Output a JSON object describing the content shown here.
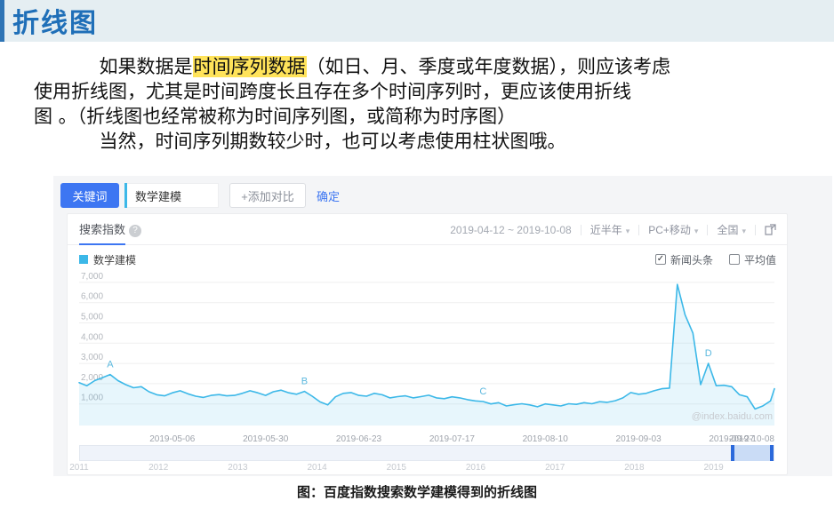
{
  "slide": {
    "title": "折线图",
    "body": {
      "line1_pre": "如果数据是",
      "line1_hl": "时间序列数据",
      "line1_post": "（如日、月、季度或年度数据），则应该考虑",
      "line2": "使用折线图，尤其是时间跨度长且存在多个时间序列时，更应该使用折线",
      "line3": "图 。（折线图也经常被称为时间序列图，或简称为时序图）",
      "line4": "当然，时间序列期数较少时，也可以考虑使用柱状图哦。"
    },
    "caption": "图：百度指数搜索数学建模得到的折线图"
  },
  "widget": {
    "toolbar": {
      "keyword_button": "关键词",
      "keyword_value": "数学建模",
      "add_compare": "+添加对比",
      "confirm": "确定"
    },
    "panel": {
      "tab_title": "搜索指数",
      "help_icon": "?",
      "date_range": "2019-04-12 ~ 2019-10-08",
      "filters": [
        {
          "label": "近半年"
        },
        {
          "label": "PC+移动"
        },
        {
          "label": "全国"
        }
      ],
      "legend_label": "数学建模",
      "options": [
        {
          "label": "新闻头条",
          "checked": true
        },
        {
          "label": "平均值",
          "checked": false
        }
      ],
      "watermark": "@index.baidu.com",
      "timeline_years": [
        "2011",
        "2012",
        "2013",
        "2014",
        "2015",
        "2016",
        "2017",
        "2018",
        "2019"
      ]
    }
  },
  "colors": {
    "series_cyan": "#3CB8E8",
    "accent_blue": "#3D76F2",
    "title_blue": "#1F6FB8",
    "highlight_yellow": "#FFE35A",
    "selection_blue": "#2B69DB"
  },
  "chart_data": {
    "type": "line",
    "title": "搜索指数",
    "xlabel": "",
    "ylabel": "",
    "x_start_date": "2019-04-12",
    "x_end_date": "2019-10-08",
    "total_days": 179,
    "point_interval_days": 2,
    "x_tick_labels": [
      "2019-05-06",
      "2019-05-30",
      "2019-06-23",
      "2019-07-17",
      "2019-08-10",
      "2019-09-03",
      "2019-09-27",
      "2019-10-08"
    ],
    "x_tick_days": [
      24,
      48,
      72,
      96,
      120,
      144,
      168,
      179
    ],
    "y_ticks": [
      1000,
      2000,
      3000,
      4000,
      5000,
      6000,
      7000
    ],
    "y_tick_labels": [
      "1,000",
      "2,000",
      "3,000",
      "4,000",
      "5,000",
      "6,000",
      "7,000"
    ],
    "ylim": [
      0,
      7400
    ],
    "grid": true,
    "legend_position": "top-left",
    "series": [
      {
        "name": "数学建模",
        "color": "#3CB8E8",
        "values": [
          2050,
          1900,
          2150,
          2300,
          2450,
          2150,
          1950,
          1800,
          1850,
          1600,
          1450,
          1400,
          1550,
          1650,
          1500,
          1380,
          1320,
          1420,
          1460,
          1400,
          1420,
          1520,
          1650,
          1550,
          1420,
          1600,
          1680,
          1550,
          1480,
          1620,
          1380,
          1100,
          950,
          1350,
          1520,
          1560,
          1420,
          1380,
          1520,
          1450,
          1300,
          1360,
          1400,
          1300,
          1360,
          1430,
          1300,
          1260,
          1350,
          1300,
          1210,
          1150,
          1120,
          1000,
          1060,
          900,
          960,
          1010,
          950,
          860,
          1000,
          950,
          900,
          1010,
          980,
          1060,
          1010,
          1110,
          1080,
          1160,
          1300,
          1560,
          1480,
          1520,
          1650,
          1750,
          1780,
          6900,
          5400,
          4500,
          1950,
          3000,
          1900,
          1920,
          1850,
          1450,
          1350,
          750,
          900,
          1150,
          1750
        ]
      }
    ],
    "annotations": [
      {
        "label": "A",
        "point_index": 4
      },
      {
        "label": "B",
        "point_index": 29
      },
      {
        "label": "C",
        "point_index": 52
      },
      {
        "label": "D",
        "point_index": 81
      }
    ]
  }
}
